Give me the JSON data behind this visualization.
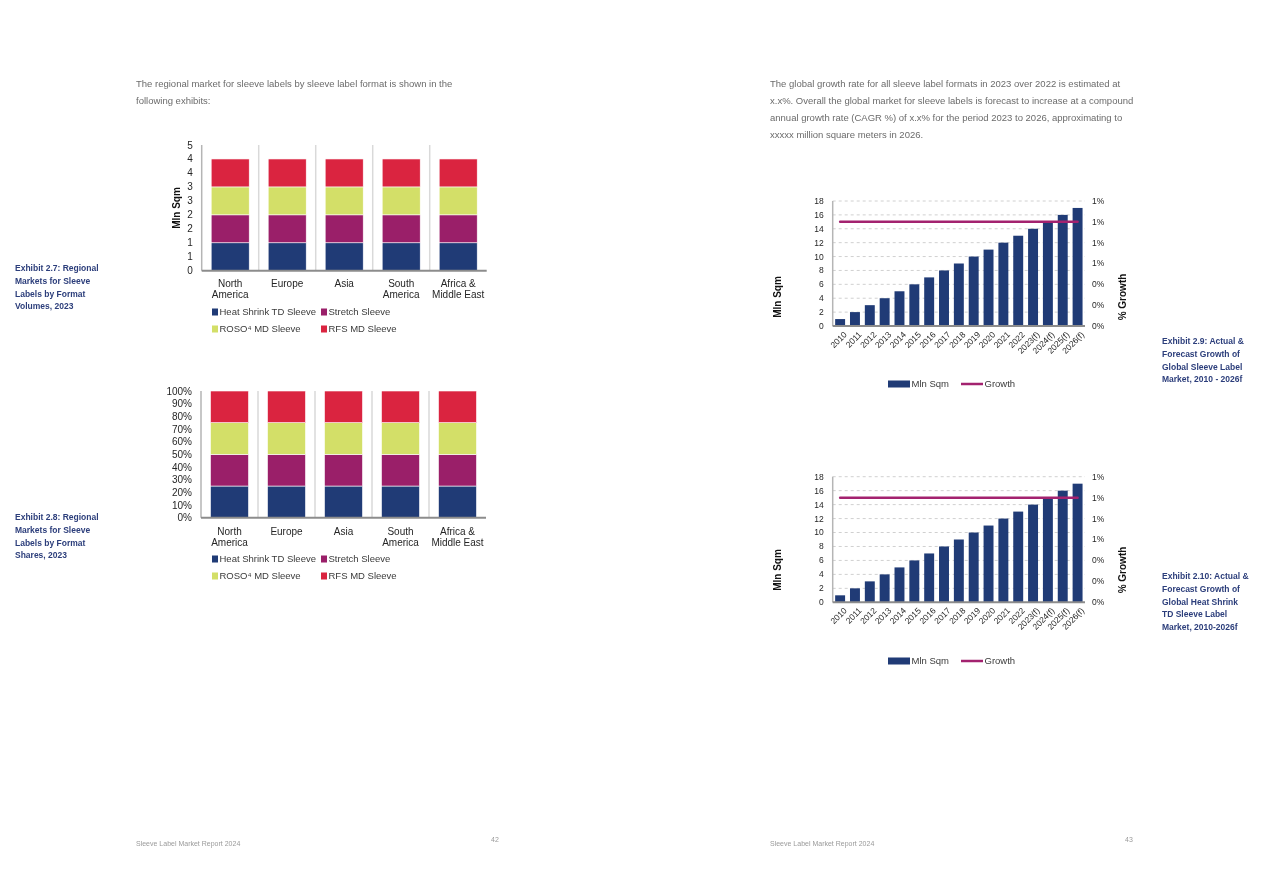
{
  "chart_data": [
    {
      "type": "bar",
      "stacked": true,
      "subtitle": "The regional market for sleeve labels by sleeve label format is shown in the following exhibits:",
      "ylabel": "Mln Sqm",
      "categories": [
        "North America",
        "Europe",
        "Asia",
        "South America",
        "Africa & Middle East"
      ],
      "series": [
        {
          "name": "Heat Shrink TD Sleeve",
          "color": "#203b76",
          "values": [
            1,
            1,
            1,
            1,
            1
          ]
        },
        {
          "name": "Stretch Sleeve",
          "color": "#9a1f69",
          "values": [
            1,
            1,
            1,
            1,
            1
          ]
        },
        {
          "name": "ROSO⁴ MD Sleeve",
          "color": "#d3df68",
          "values": [
            1,
            1,
            1,
            1,
            1
          ]
        },
        {
          "name": "RFS MD Sleeve",
          "color": "#da2440",
          "values": [
            1,
            1,
            1,
            1,
            1
          ]
        }
      ],
      "ylim": [
        0,
        4.5
      ],
      "yticks": [
        0,
        {
          "value": 0.5,
          "label": "1"
        },
        1,
        {
          "value": 1.5,
          "label": "2"
        },
        2,
        {
          "value": 2.5,
          "label": "3"
        },
        3,
        {
          "value": 3.5,
          "label": "4"
        },
        4,
        {
          "value": 4.5,
          "label": "5"
        }
      ],
      "grid": "x",
      "legend": "bottom",
      "annotations": [
        "Exhibit 2.7: Regional Markets for Sleeve Labels by Format Volumes, 2023"
      ]
    },
    {
      "type": "bar",
      "stacked": true,
      "categories": [
        "North America",
        "Europe",
        "Asia",
        "South America",
        "Africa & Middle East"
      ],
      "series": [
        {
          "name": "Heat Shrink TD Sleeve",
          "color": "#203b76",
          "values": [
            25,
            25,
            25,
            25,
            25
          ]
        },
        {
          "name": "Stretch Sleeve",
          "color": "#9a1f69",
          "values": [
            25,
            25,
            25,
            25,
            25
          ]
        },
        {
          "name": "ROSO⁴ MD Sleeve",
          "color": "#d3df68",
          "values": [
            25,
            25,
            25,
            25,
            25
          ]
        },
        {
          "name": "RFS MD Sleeve",
          "color": "#da2440",
          "values": [
            25,
            25,
            25,
            25,
            25
          ]
        }
      ],
      "ylim": [
        0,
        100
      ],
      "yticks": [
        {
          "value": 0,
          "label": "0%"
        },
        {
          "value": 10,
          "label": "10%"
        },
        {
          "value": 20,
          "label": "20%"
        },
        {
          "value": 30,
          "label": "30%"
        },
        {
          "value": 40,
          "label": "40%"
        },
        {
          "value": 50,
          "label": "50%"
        },
        {
          "value": 60,
          "label": "60%"
        },
        {
          "value": 70,
          "label": "70%"
        },
        {
          "value": 80,
          "label": "80%"
        },
        {
          "value": 90,
          "label": "90%"
        },
        {
          "value": 100,
          "label": "100%"
        }
      ],
      "grid": "x",
      "legend": "bottom",
      "annotations": [
        "Exhibit 2.8: Regional Markets for Sleeve Labels by Format Shares, 2023",
        "Sleeve Label Market Report 2024",
        "42"
      ]
    },
    {
      "type": "bar",
      "subtitle": "The global growth rate for all sleeve label formats in 2023 over 2022 is estimated at x.x%. Overall the global market for sleeve labels is forecast to increase at a compound annual growth rate (CAGR %) of x.x% for the period 2023 to 2026, approximating to xxxxx million square meters in 2026.",
      "ylabel": "Mln Sqm",
      "y2label": "% Growth",
      "categories": [
        "2010",
        "2011",
        "2012",
        "2013",
        "2014",
        "2015",
        "2016",
        "2017",
        "2018",
        "2019",
        "2020",
        "2021",
        "2022",
        "2023(f)",
        "2024(f)",
        "2025(f)",
        "2026(f)"
      ],
      "series": [
        {
          "name": "Mln Sqm",
          "color": "#203b76",
          "values": [
            1,
            2,
            3,
            4,
            5,
            6,
            7,
            8,
            9,
            10,
            11,
            12,
            13,
            14,
            15,
            16,
            17
          ]
        },
        {
          "name": "Growth",
          "type": "line",
          "axis": "y2",
          "color": "#a3226f",
          "values": [
            1,
            1,
            1,
            1,
            1,
            1,
            1,
            1,
            1,
            1,
            1,
            1,
            1,
            1,
            1,
            1,
            1
          ]
        }
      ],
      "ylim": [
        0,
        18
      ],
      "yticks": [
        0,
        2,
        4,
        6,
        8,
        10,
        12,
        14,
        16,
        18
      ],
      "y2lim": [
        0,
        1.2
      ],
      "y2ticks": [
        {
          "value": 0,
          "label": "0%"
        },
        {
          "value": 0.2,
          "label": "0%"
        },
        {
          "value": 0.4,
          "label": "0%"
        },
        {
          "value": 0.6,
          "label": "1%"
        },
        {
          "value": 0.8,
          "label": "1%"
        },
        {
          "value": 1,
          "label": "1%"
        },
        {
          "value": 1.2,
          "label": "1%"
        }
      ],
      "grid": "y",
      "legend": "bottom",
      "annotations": [
        "Exhibit 2.9: Actual & Forecast Growth of Global Sleeve Label Market, 2010 - 2026f"
      ]
    },
    {
      "type": "bar",
      "ylabel": "Mln Sqm",
      "y2label": "% Growth",
      "categories": [
        "2010",
        "2011",
        "2012",
        "2013",
        "2014",
        "2015",
        "2016",
        "2017",
        "2018",
        "2019",
        "2020",
        "2021",
        "2022",
        "2023(f)",
        "2024(f)",
        "2025(f)",
        "2026(f)"
      ],
      "series": [
        {
          "name": "Mln Sqm",
          "color": "#203b76",
          "values": [
            1,
            2,
            3,
            4,
            5,
            6,
            7,
            8,
            9,
            10,
            11,
            12,
            13,
            14,
            15,
            16,
            17
          ]
        },
        {
          "name": "Growth",
          "type": "line",
          "axis": "y2",
          "color": "#a3226f",
          "values": [
            1,
            1,
            1,
            1,
            1,
            1,
            1,
            1,
            1,
            1,
            1,
            1,
            1,
            1,
            1,
            1,
            1
          ]
        }
      ],
      "ylim": [
        0,
        18
      ],
      "yticks": [
        0,
        2,
        4,
        6,
        8,
        10,
        12,
        14,
        16,
        18
      ],
      "y2lim": [
        0,
        1.2
      ],
      "y2ticks": [
        {
          "value": 0,
          "label": "0%"
        },
        {
          "value": 0.2,
          "label": "0%"
        },
        {
          "value": 0.4,
          "label": "0%"
        },
        {
          "value": 0.6,
          "label": "1%"
        },
        {
          "value": 0.8,
          "label": "1%"
        },
        {
          "value": 1,
          "label": "1%"
        },
        {
          "value": 1.2,
          "label": "1%"
        }
      ],
      "grid": "y",
      "legend": "bottom",
      "annotations": [
        "Exhibit 2.10: Actual & Forecast Growth of Global Heat Shrink TD Sleeve Label Market, 2010-2026f",
        "Sleeve Label Market Report 2024",
        "43"
      ]
    }
  ]
}
